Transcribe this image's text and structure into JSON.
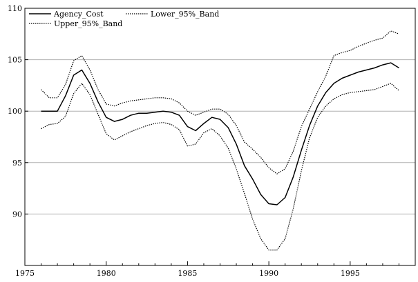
{
  "chart_data": {
    "type": "line",
    "title": "",
    "xlabel": "",
    "ylabel": "",
    "xlim": [
      1975,
      1999
    ],
    "ylim": [
      85,
      110
    ],
    "x_ticks": [
      1975,
      1980,
      1985,
      1990,
      1995
    ],
    "x_tick_labels": [
      "1975",
      "1980",
      "1985",
      "1990",
      "1995"
    ],
    "y_ticks": [
      90,
      95,
      100,
      105,
      110
    ],
    "y_tick_labels": [
      "90",
      "95",
      "100",
      "105",
      "110"
    ],
    "grid": "horizontal",
    "legend_position": "top-left",
    "series": [
      {
        "name": "Agency_Cost",
        "style": "solid",
        "color": "#000000",
        "x": [
          1976.0,
          1976.5,
          1977.0,
          1977.5,
          1978.0,
          1978.5,
          1979.0,
          1979.5,
          1980.0,
          1980.5,
          1981.0,
          1981.5,
          1982.0,
          1982.5,
          1983.0,
          1983.5,
          1984.0,
          1984.5,
          1985.0,
          1985.5,
          1986.0,
          1986.5,
          1987.0,
          1987.5,
          1988.0,
          1988.5,
          1989.0,
          1989.5,
          1990.0,
          1990.5,
          1991.0,
          1991.5,
          1992.0,
          1992.5,
          1993.0,
          1993.5,
          1994.0,
          1994.5,
          1995.0,
          1995.5,
          1996.0,
          1996.5,
          1997.0,
          1997.5,
          1998.0
        ],
        "values": [
          100.0,
          100.0,
          100.0,
          101.5,
          103.5,
          104.0,
          102.7,
          100.9,
          99.4,
          99.0,
          99.2,
          99.6,
          99.8,
          99.8,
          99.9,
          100.0,
          99.9,
          99.6,
          98.5,
          98.1,
          98.8,
          99.4,
          99.2,
          98.4,
          96.8,
          94.7,
          93.4,
          91.9,
          91.0,
          90.9,
          91.6,
          93.6,
          96.2,
          98.6,
          100.5,
          101.8,
          102.7,
          103.2,
          103.5,
          103.8,
          104.0,
          104.2,
          104.5,
          104.7,
          104.2
        ]
      },
      {
        "name": "Lower_95%_Band",
        "style": "dotted",
        "color": "#000000",
        "x": [
          1976.0,
          1976.5,
          1977.0,
          1977.5,
          1978.0,
          1978.5,
          1979.0,
          1979.5,
          1980.0,
          1980.5,
          1981.0,
          1981.5,
          1982.0,
          1982.5,
          1983.0,
          1983.5,
          1984.0,
          1984.5,
          1985.0,
          1985.5,
          1986.0,
          1986.5,
          1987.0,
          1987.5,
          1988.0,
          1988.5,
          1989.0,
          1989.5,
          1990.0,
          1990.5,
          1991.0,
          1991.5,
          1992.0,
          1992.5,
          1993.0,
          1993.5,
          1994.0,
          1994.5,
          1995.0,
          1995.5,
          1996.0,
          1996.5,
          1997.0,
          1997.5,
          1998.0
        ],
        "values": [
          98.3,
          98.7,
          98.8,
          99.5,
          101.7,
          102.7,
          101.6,
          99.7,
          97.8,
          97.2,
          97.6,
          98.0,
          98.3,
          98.6,
          98.8,
          98.9,
          98.7,
          98.2,
          96.6,
          96.8,
          97.9,
          98.3,
          97.6,
          96.4,
          94.4,
          92.0,
          89.5,
          87.6,
          86.5,
          86.5,
          87.6,
          90.5,
          94.2,
          97.4,
          99.4,
          100.5,
          101.2,
          101.6,
          101.8,
          101.9,
          102.0,
          102.1,
          102.4,
          102.7,
          102.0
        ]
      },
      {
        "name": "Upper_95%_Band",
        "style": "dotted",
        "color": "#000000",
        "x": [
          1976.0,
          1976.5,
          1977.0,
          1977.5,
          1978.0,
          1978.5,
          1979.0,
          1979.5,
          1980.0,
          1980.5,
          1981.0,
          1981.5,
          1982.0,
          1982.5,
          1983.0,
          1983.5,
          1984.0,
          1984.5,
          1985.0,
          1985.5,
          1986.0,
          1986.5,
          1987.0,
          1987.5,
          1988.0,
          1988.5,
          1989.0,
          1989.5,
          1990.0,
          1990.5,
          1991.0,
          1991.5,
          1992.0,
          1992.5,
          1993.0,
          1993.5,
          1994.0,
          1994.5,
          1995.0,
          1995.5,
          1996.0,
          1996.5,
          1997.0,
          1997.5,
          1998.0
        ],
        "values": [
          102.1,
          101.3,
          101.3,
          102.6,
          104.9,
          105.4,
          104.0,
          102.1,
          100.7,
          100.5,
          100.8,
          101.0,
          101.1,
          101.2,
          101.3,
          101.3,
          101.2,
          100.8,
          100.0,
          99.6,
          99.9,
          100.2,
          100.2,
          99.7,
          98.6,
          97.0,
          96.3,
          95.5,
          94.5,
          93.9,
          94.4,
          96.1,
          98.5,
          100.2,
          101.9,
          103.4,
          105.4,
          105.7,
          105.9,
          106.3,
          106.6,
          106.9,
          107.1,
          107.8,
          107.5
        ]
      }
    ]
  }
}
